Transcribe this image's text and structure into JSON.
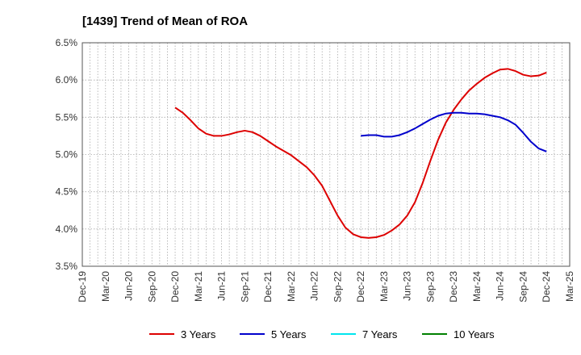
{
  "chart_data": {
    "type": "line",
    "title": "[1439]  Trend of Mean of ROA",
    "xlabel": "",
    "ylabel": "",
    "x_ticks": [
      "Dec-19",
      "Mar-20",
      "Jun-20",
      "Sep-20",
      "Dec-20",
      "Mar-21",
      "Jun-21",
      "Sep-21",
      "Dec-21",
      "Mar-22",
      "Jun-22",
      "Sep-22",
      "Dec-22",
      "Mar-23",
      "Jun-23",
      "Sep-23",
      "Dec-23",
      "Mar-24",
      "Jun-24",
      "Sep-24",
      "Dec-24",
      "Mar-25"
    ],
    "ylim": [
      3.5,
      6.5
    ],
    "y_ticks": [
      3.5,
      4.0,
      4.5,
      5.0,
      5.5,
      6.0,
      6.5
    ],
    "y_tick_labels": [
      "3.5%",
      "4.0%",
      "4.5%",
      "5.0%",
      "5.5%",
      "6.0%",
      "6.5%"
    ],
    "grid": true,
    "legend_position": "bottom",
    "series": [
      {
        "name": "3 Years",
        "color": "#dd0000",
        "x": [
          "Dec-20",
          "Jan-21",
          "Feb-21",
          "Mar-21",
          "Apr-21",
          "May-21",
          "Jun-21",
          "Jul-21",
          "Aug-21",
          "Sep-21",
          "Oct-21",
          "Nov-21",
          "Dec-21",
          "Jan-22",
          "Feb-22",
          "Mar-22",
          "Apr-22",
          "May-22",
          "Jun-22",
          "Jul-22",
          "Aug-22",
          "Sep-22",
          "Oct-22",
          "Nov-22",
          "Dec-22",
          "Jan-23",
          "Feb-23",
          "Mar-23",
          "Apr-23",
          "May-23",
          "Jun-23",
          "Jul-23",
          "Aug-23",
          "Sep-23",
          "Oct-23",
          "Nov-23",
          "Dec-23",
          "Jan-24",
          "Feb-24",
          "Mar-24",
          "Apr-24",
          "May-24",
          "Jun-24",
          "Jul-24",
          "Aug-24",
          "Sep-24",
          "Oct-24",
          "Nov-24",
          "Dec-24"
        ],
        "values": [
          5.63,
          5.56,
          5.46,
          5.35,
          5.28,
          5.25,
          5.25,
          5.27,
          5.3,
          5.32,
          5.3,
          5.25,
          5.18,
          5.11,
          5.05,
          4.99,
          4.91,
          4.83,
          4.72,
          4.58,
          4.38,
          4.18,
          4.02,
          3.93,
          3.89,
          3.88,
          3.89,
          3.92,
          3.98,
          4.06,
          4.18,
          4.36,
          4.62,
          4.92,
          5.2,
          5.43,
          5.6,
          5.74,
          5.86,
          5.95,
          6.03,
          6.09,
          6.14,
          6.15,
          6.12,
          6.07,
          6.05,
          6.06,
          6.1
        ]
      },
      {
        "name": "5 Years",
        "color": "#0000cc",
        "x": [
          "Dec-22",
          "Jan-23",
          "Feb-23",
          "Mar-23",
          "Apr-23",
          "May-23",
          "Jun-23",
          "Jul-23",
          "Aug-23",
          "Sep-23",
          "Oct-23",
          "Nov-23",
          "Dec-23",
          "Jan-24",
          "Feb-24",
          "Mar-24",
          "Apr-24",
          "May-24",
          "Jun-24",
          "Jul-24",
          "Aug-24",
          "Sep-24",
          "Oct-24",
          "Nov-24",
          "Dec-24"
        ],
        "values": [
          5.25,
          5.26,
          5.26,
          5.24,
          5.24,
          5.26,
          5.3,
          5.35,
          5.41,
          5.47,
          5.52,
          5.55,
          5.56,
          5.56,
          5.55,
          5.55,
          5.54,
          5.52,
          5.5,
          5.46,
          5.4,
          5.29,
          5.17,
          5.08,
          5.04
        ]
      },
      {
        "name": "7 Years",
        "color": "#00e5ee",
        "x": [],
        "values": []
      },
      {
        "name": "10 Years",
        "color": "#008000",
        "x": [],
        "values": []
      }
    ]
  }
}
